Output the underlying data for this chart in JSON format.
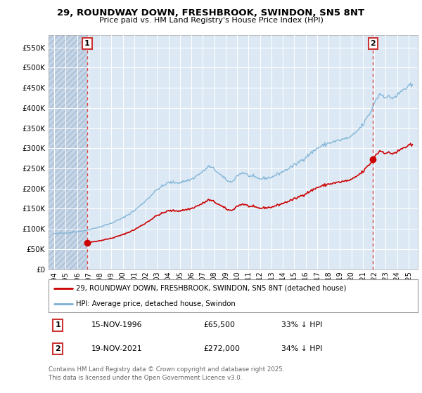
{
  "title_line1": "29, ROUNDWAY DOWN, FRESHBROOK, SWINDON, SN5 8NT",
  "title_line2": "Price paid vs. HM Land Registry's House Price Index (HPI)",
  "annotation1_label": "1",
  "annotation1_date": "15-NOV-1996",
  "annotation1_price": "£65,500",
  "annotation1_hpi": "33% ↓ HPI",
  "annotation2_label": "2",
  "annotation2_date": "19-NOV-2021",
  "annotation2_price": "£272,000",
  "annotation2_hpi": "34% ↓ HPI",
  "legend_line1": "29, ROUNDWAY DOWN, FRESHBROOK, SWINDON, SN5 8NT (detached house)",
  "legend_line2": "HPI: Average price, detached house, Swindon",
  "footer": "Contains HM Land Registry data © Crown copyright and database right 2025.\nThis data is licensed under the Open Government Licence v3.0.",
  "ylim": [
    0,
    580000
  ],
  "yticks": [
    0,
    50000,
    100000,
    150000,
    200000,
    250000,
    300000,
    350000,
    400000,
    450000,
    500000,
    550000
  ],
  "ytick_labels": [
    "£0",
    "£50K",
    "£100K",
    "£150K",
    "£200K",
    "£250K",
    "£300K",
    "£350K",
    "£400K",
    "£450K",
    "£500K",
    "£550K"
  ],
  "xmin": 1993.5,
  "xmax": 2025.8,
  "xticks": [
    1994,
    1995,
    1996,
    1997,
    1998,
    1999,
    2000,
    2001,
    2002,
    2003,
    2004,
    2005,
    2006,
    2007,
    2008,
    2009,
    2010,
    2011,
    2012,
    2013,
    2014,
    2015,
    2016,
    2017,
    2018,
    2019,
    2020,
    2021,
    2022,
    2023,
    2024,
    2025
  ],
  "purchase1_x": 1996.876,
  "purchase1_y": 65500,
  "purchase2_x": 2021.876,
  "purchase2_y": 272000,
  "red_line_color": "#cc0000",
  "blue_line_color": "#7ab0d4",
  "plot_bg_color": "#dce9f5",
  "hatch_bg_color": "#c5d5e8"
}
